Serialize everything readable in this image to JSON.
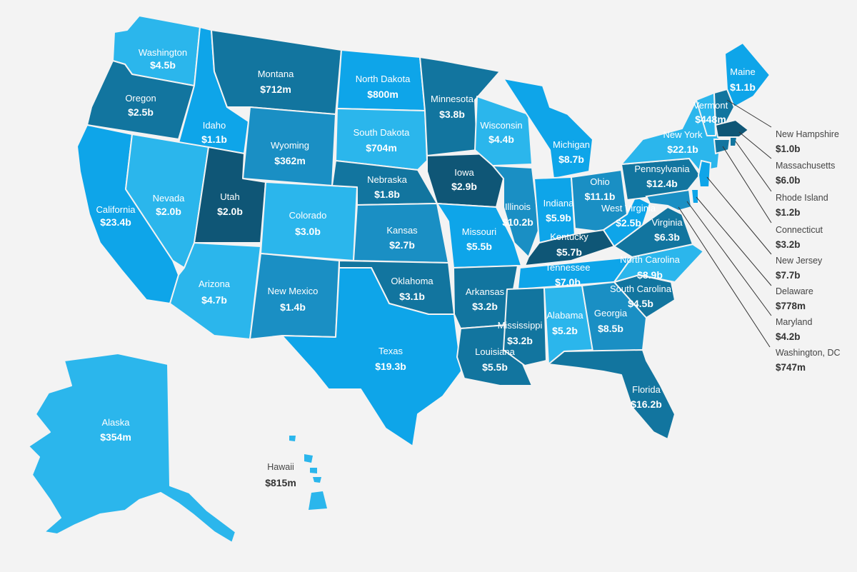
{
  "colors": {
    "level1": "#2bb6ec",
    "level2": "#0ea5e9",
    "level3": "#1a8fc4",
    "level4": "#12759f",
    "level5": "#0f5676"
  },
  "states": {
    "washington": {
      "name": "Washington",
      "value": "$4.5b",
      "level": "level1"
    },
    "oregon": {
      "name": "Oregon",
      "value": "$2.5b",
      "level": "level4"
    },
    "california": {
      "name": "California",
      "value": "$23.4b",
      "level": "level2"
    },
    "idaho": {
      "name": "Idaho",
      "value": "$1.1b",
      "level": "level2"
    },
    "nevada": {
      "name": "Nevada",
      "value": "$2.0b",
      "level": "level1"
    },
    "montana": {
      "name": "Montana",
      "value": "$712m",
      "level": "level4"
    },
    "wyoming": {
      "name": "Wyoming",
      "value": "$362m",
      "level": "level3"
    },
    "utah": {
      "name": "Utah",
      "value": "$2.0b",
      "level": "level5"
    },
    "arizona": {
      "name": "Arizona",
      "value": "$4.7b",
      "level": "level1"
    },
    "colorado": {
      "name": "Colorado",
      "value": "$3.0b",
      "level": "level1"
    },
    "new_mexico": {
      "name": "New Mexico",
      "value": "$1.4b",
      "level": "level3"
    },
    "north_dakota": {
      "name": "North Dakota",
      "value": "$800m",
      "level": "level2"
    },
    "south_dakota": {
      "name": "South Dakota",
      "value": "$704m",
      "level": "level1"
    },
    "nebraska": {
      "name": "Nebraska",
      "value": "$1.8b",
      "level": "level4"
    },
    "kansas": {
      "name": "Kansas",
      "value": "$2.7b",
      "level": "level3"
    },
    "oklahoma": {
      "name": "Oklahoma",
      "value": "$3.1b",
      "level": "level4"
    },
    "texas": {
      "name": "Texas",
      "value": "$19.3b",
      "level": "level2"
    },
    "minnesota": {
      "name": "Minnesota",
      "value": "$3.8b",
      "level": "level4"
    },
    "iowa": {
      "name": "Iowa",
      "value": "$2.9b",
      "level": "level5"
    },
    "missouri": {
      "name": "Missouri",
      "value": "$5.5b",
      "level": "level2"
    },
    "arkansas": {
      "name": "Arkansas",
      "value": "$3.2b",
      "level": "level4"
    },
    "louisiana": {
      "name": "Louisiana",
      "value": "$5.5b",
      "level": "level4"
    },
    "wisconsin": {
      "name": "Wisconsin",
      "value": "$4.4b",
      "level": "level1"
    },
    "illinois": {
      "name": "Illinois",
      "value": "$10.2b",
      "level": "level3"
    },
    "michigan": {
      "name": "Michigan",
      "value": "$8.7b",
      "level": "level2"
    },
    "indiana": {
      "name": "Indiana",
      "value": "$5.9b",
      "level": "level2"
    },
    "ohio": {
      "name": "Ohio",
      "value": "$11.1b",
      "level": "level3"
    },
    "kentucky": {
      "name": "Kentucky",
      "value": "$5.7b",
      "level": "level5"
    },
    "tennessee": {
      "name": "Tennessee",
      "value": "$7.0b",
      "level": "level2"
    },
    "mississippi": {
      "name": "Mississippi",
      "value": "$3.2b",
      "level": "level4"
    },
    "alabama": {
      "name": "Alabama",
      "value": "$5.2b",
      "level": "level1"
    },
    "georgia": {
      "name": "Georgia",
      "value": "$8.5b",
      "level": "level3"
    },
    "florida": {
      "name": "Florida",
      "value": "$16.2b",
      "level": "level4"
    },
    "south_carolina": {
      "name": "South Carolina",
      "value": "$4.5b",
      "level": "level4"
    },
    "north_carolina": {
      "name": "North Carolina",
      "value": "$8.9b",
      "level": "level1"
    },
    "virginia": {
      "name": "Virginia",
      "value": "$6.3b",
      "level": "level4"
    },
    "west_virginia": {
      "name": "West Virginia",
      "value": "$2.5b",
      "level": "level2"
    },
    "pennsylvania": {
      "name": "Pennsylvania",
      "value": "$12.4b",
      "level": "level4"
    },
    "new_york": {
      "name": "New York",
      "value": "$22.1b",
      "level": "level1"
    },
    "vermont": {
      "name": "Vermont",
      "value": "$448m",
      "level": "level1"
    },
    "maine": {
      "name": "Maine",
      "value": "$1.1b",
      "level": "level2"
    },
    "alaska": {
      "name": "Alaska",
      "value": "$354m",
      "level": "level1"
    }
  },
  "hawaii": {
    "name": "Hawaii",
    "value": "$815m"
  },
  "callouts": [
    {
      "name": "New Hampshire",
      "value": "$1.0b"
    },
    {
      "name": "Massachusetts",
      "value": "$6.0b"
    },
    {
      "name": "Rhode Island",
      "value": "$1.2b"
    },
    {
      "name": "Connecticut",
      "value": "$3.2b"
    },
    {
      "name": "New Jersey",
      "value": "$7.7b"
    },
    {
      "name": "Delaware",
      "value": "$778m"
    },
    {
      "name": "Maryland",
      "value": "$4.2b"
    },
    {
      "name": "Washington, DC",
      "value": "$747m"
    }
  ]
}
